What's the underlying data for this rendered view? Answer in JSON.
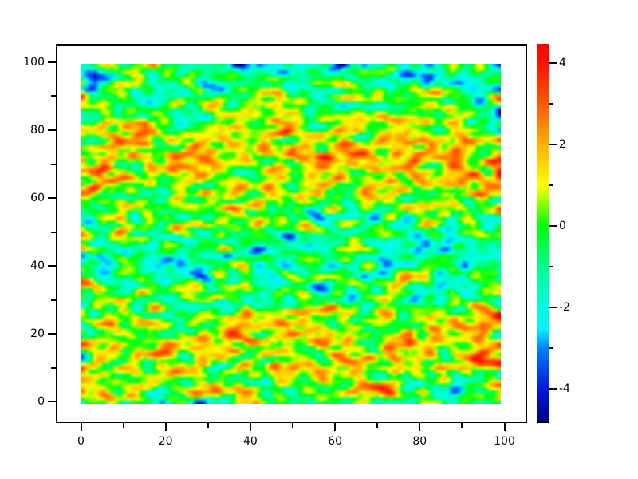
{
  "window": {
    "background": "#ffffff"
  },
  "chart_data": {
    "type": "heatmap",
    "title": "",
    "xlabel": "",
    "ylabel": "",
    "grid": false,
    "legend": "colorbar-right",
    "x_axis": {
      "major_ticks": [
        0,
        20,
        40,
        60,
        80,
        100
      ],
      "major_tick_labels": [
        "0",
        "20",
        "40",
        "60",
        "80",
        "100"
      ],
      "minor_ticks": [
        10,
        30,
        50,
        70,
        90
      ],
      "range": [
        -6,
        105
      ]
    },
    "y_axis": {
      "major_ticks": [
        0,
        20,
        40,
        60,
        80,
        100
      ],
      "major_tick_labels": [
        "0",
        "20",
        "40",
        "60",
        "80",
        "100"
      ],
      "minor_ticks": [
        10,
        30,
        50,
        70,
        90
      ],
      "range": [
        -6,
        105.5
      ]
    },
    "colorbar": {
      "value_range": [
        -4.84,
        4.47
      ],
      "major_ticks": [
        4,
        2,
        0,
        -2,
        -4
      ],
      "major_tick_labels": [
        "4",
        "2",
        "0",
        "-2",
        "-4"
      ],
      "minor_ticks": [
        3,
        1,
        -1,
        -3
      ]
    },
    "colormap": {
      "name": "jet-like-rainbow",
      "stops": [
        {
          "v": -4.84,
          "color": "#000080"
        },
        {
          "v": -4.0,
          "color": "#0018dd"
        },
        {
          "v": -3.0,
          "color": "#0080ff"
        },
        {
          "v": -2.55,
          "color": "#00f0ff"
        },
        {
          "v": -2.0,
          "color": "#00ffdf"
        },
        {
          "v": -1.0,
          "color": "#00ff90"
        },
        {
          "v": 0.0,
          "color": "#00ff08"
        },
        {
          "v": 1.0,
          "color": "#ffff00"
        },
        {
          "v": 2.0,
          "color": "#ffb000"
        },
        {
          "v": 3.0,
          "color": "#ff5800"
        },
        {
          "v": 4.0,
          "color": "#ff1000"
        },
        {
          "v": 4.47,
          "color": "#ff0000"
        }
      ]
    },
    "field": {
      "description": "100x100 smoothed pseudo-random scalar field; horizontal high-value (yellow/orange/red) bands centered near y=15 and y=72, low-value (green/cyan with sparse navy dots) troughs near y=44 and y=97; mostly green midtones with small red maxima and cyan/blue minima specks",
      "grid_size": [
        100,
        100
      ],
      "data_extent_x": [
        0,
        99
      ],
      "data_extent_y": [
        0,
        99
      ],
      "band_amplitude": 1.15,
      "band_period": 57,
      "band_phase": 0.75,
      "noise_sigma": 1.15,
      "seed": 1337
    }
  }
}
